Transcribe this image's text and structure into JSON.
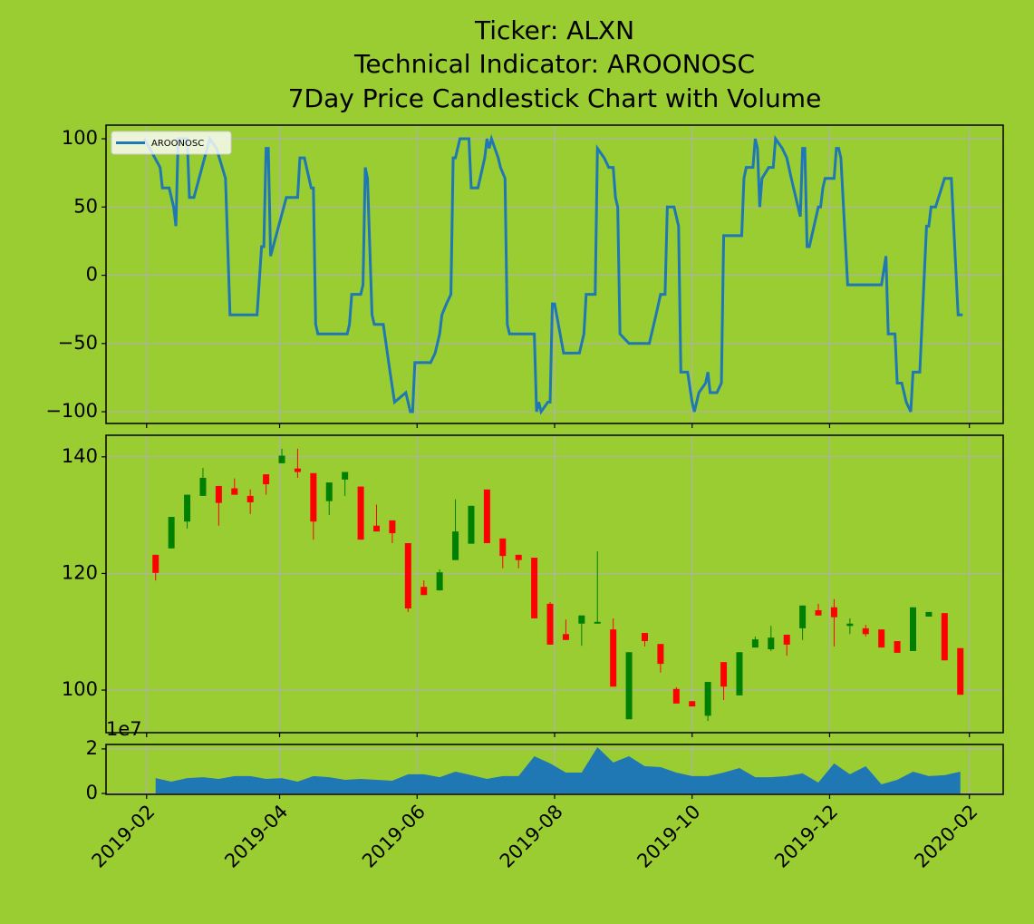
{
  "chart_data": [
    {
      "type": "line",
      "title": [
        "Ticker: ALXN",
        "Technical Indicator: AROONOSC",
        "7Day Price Candlestick Chart with Volume"
      ],
      "x": [
        "2019-01-31",
        "2019-02-07",
        "2019-02-08",
        "2019-02-11",
        "2019-02-13",
        "2019-02-14",
        "2019-02-15",
        "2019-02-19",
        "2019-02-20",
        "2019-02-22",
        "2019-03-01",
        "2019-03-04",
        "2019-03-08",
        "2019-03-10",
        "2019-03-22",
        "2019-03-24",
        "2019-03-25",
        "2019-03-26",
        "2019-03-27",
        "2019-03-28",
        "2019-04-04",
        "2019-04-09",
        "2019-04-10",
        "2019-04-12",
        "2019-04-15",
        "2019-04-16",
        "2019-04-17",
        "2019-04-18",
        "2019-05-01",
        "2019-05-02",
        "2019-05-03",
        "2019-05-07",
        "2019-05-08",
        "2019-05-09",
        "2019-05-10",
        "2019-05-12",
        "2019-05-13",
        "2019-05-17",
        "2019-05-20",
        "2019-05-22",
        "2019-05-27",
        "2019-05-29",
        "2019-05-30",
        "2019-05-31",
        "2019-06-07",
        "2019-06-09",
        "2019-06-11",
        "2019-06-12",
        "2019-06-14",
        "2019-06-16",
        "2019-06-17",
        "2019-06-18",
        "2019-06-20",
        "2019-06-24",
        "2019-06-25",
        "2019-06-28",
        "2019-07-01",
        "2019-07-02",
        "2019-07-03",
        "2019-07-04",
        "2019-07-07",
        "2019-07-08",
        "2019-07-10",
        "2019-07-11",
        "2019-07-12",
        "2019-07-23",
        "2019-07-24",
        "2019-07-25",
        "2019-07-26",
        "2019-07-29",
        "2019-07-30",
        "2019-07-31",
        "2019-08-01",
        "2019-08-05",
        "2019-08-12",
        "2019-08-14",
        "2019-08-15",
        "2019-08-19",
        "2019-08-20",
        "2019-08-23",
        "2019-08-25",
        "2019-08-27",
        "2019-08-28",
        "2019-08-29",
        "2019-08-30",
        "2019-09-03",
        "2019-09-12",
        "2019-09-15",
        "2019-09-17",
        "2019-09-19",
        "2019-09-20",
        "2019-09-23",
        "2019-09-25",
        "2019-09-26",
        "2019-09-29",
        "2019-10-01",
        "2019-10-02",
        "2019-10-04",
        "2019-10-07",
        "2019-10-08",
        "2019-10-09",
        "2019-10-12",
        "2019-10-14",
        "2019-10-15",
        "2019-10-23",
        "2019-10-24",
        "2019-10-25",
        "2019-10-28",
        "2019-10-29",
        "2019-10-30",
        "2019-10-31",
        "2019-11-01",
        "2019-11-04",
        "2019-11-06",
        "2019-11-07",
        "2019-11-10",
        "2019-11-12",
        "2019-11-14",
        "2019-11-16",
        "2019-11-18",
        "2019-11-19",
        "2019-11-20",
        "2019-11-21",
        "2019-11-22",
        "2019-11-26",
        "2019-11-27",
        "2019-11-28",
        "2019-11-29",
        "2019-12-03",
        "2019-12-04",
        "2019-12-05",
        "2019-12-06",
        "2019-12-09",
        "2019-12-24",
        "2019-12-26",
        "2019-12-27",
        "2019-12-30",
        "2019-12-31",
        "2020-01-02",
        "2020-01-04",
        "2020-01-06",
        "2020-01-07",
        "2020-01-10",
        "2020-01-13",
        "2020-01-14",
        "2020-01-15",
        "2020-01-17",
        "2020-01-21",
        "2020-01-24",
        "2020-01-27",
        "2020-01-29"
      ],
      "series": [
        {
          "name": "AROONOSC",
          "color": "#1f77b4",
          "values": [
            100,
            79,
            64,
            64,
            50,
            36,
            100,
            100,
            57,
            57,
            100,
            93,
            71,
            -29,
            -29,
            21,
            21,
            93,
            93,
            14,
            57,
            57,
            86,
            86,
            64,
            64,
            -36,
            -43,
            -43,
            -36,
            -14,
            -14,
            -7,
            79,
            71,
            -29,
            -36,
            -36,
            -71,
            -93,
            -86,
            -100,
            -100,
            -64,
            -64,
            -57,
            -43,
            -29,
            -21,
            -14,
            86,
            86,
            100,
            100,
            64,
            64,
            86,
            100,
            93,
            100,
            86,
            79,
            71,
            -36,
            -43,
            -43,
            -100,
            -93,
            -100,
            -93,
            -93,
            -21,
            -21,
            -57,
            -57,
            -43,
            -14,
            -14,
            93,
            86,
            79,
            79,
            57,
            50,
            -43,
            -50,
            -50,
            -29,
            -14,
            -14,
            50,
            50,
            36,
            -71,
            -71,
            -93,
            -100,
            -86,
            -79,
            -71,
            -86,
            -86,
            -79,
            29,
            29,
            71,
            79,
            79,
            100,
            93,
            50,
            71,
            79,
            79,
            100,
            93,
            86,
            71,
            57,
            43,
            93,
            93,
            21,
            21,
            50,
            50,
            64,
            71,
            71,
            93,
            93,
            86,
            -7,
            -7,
            14,
            -43,
            -43,
            -79,
            -79,
            -93,
            -100,
            -71,
            -71,
            36,
            36,
            50,
            50,
            71,
            71,
            -29,
            -29
          ]
        }
      ],
      "ylim": [
        -108.6,
        110.0
      ],
      "yticks": [
        100,
        50,
        0,
        {
          "value": -50,
          "label": "−50"
        },
        {
          "value": -100,
          "label": "−100"
        }
      ],
      "legend": "upper left",
      "grid": true
    },
    {
      "type": "candlestick",
      "x": [
        "2019-02-05",
        "2019-02-12",
        "2019-02-19",
        "2019-02-26",
        "2019-03-05",
        "2019-03-12",
        "2019-03-19",
        "2019-03-26",
        "2019-04-02",
        "2019-04-09",
        "2019-04-16",
        "2019-04-23",
        "2019-04-30",
        "2019-05-07",
        "2019-05-14",
        "2019-05-21",
        "2019-05-28",
        "2019-06-04",
        "2019-06-11",
        "2019-06-18",
        "2019-06-25",
        "2019-07-02",
        "2019-07-09",
        "2019-07-16",
        "2019-07-23",
        "2019-07-30",
        "2019-08-06",
        "2019-08-13",
        "2019-08-20",
        "2019-08-27",
        "2019-09-03",
        "2019-09-10",
        "2019-09-17",
        "2019-09-24",
        "2019-10-01",
        "2019-10-08",
        "2019-10-15",
        "2019-10-22",
        "2019-10-29",
        "2019-11-05",
        "2019-11-12",
        "2019-11-19",
        "2019-11-26",
        "2019-12-03",
        "2019-12-10",
        "2019-12-17",
        "2019-12-24",
        "2019-12-31",
        "2020-01-07",
        "2020-01-14",
        "2020-01-21",
        "2020-01-28"
      ],
      "open": [
        123.2,
        124.3,
        128.9,
        133.3,
        135.0,
        134.6,
        133.3,
        137.0,
        138.9,
        138.0,
        137.2,
        132.4,
        136.1,
        134.9,
        128.2,
        129.1,
        125.2,
        117.7,
        117.1,
        122.3,
        125.1,
        134.4,
        126.0,
        123.2,
        122.7,
        114.8,
        109.6,
        111.4,
        111.4,
        110.4,
        95.0,
        109.8,
        107.9,
        100.2,
        98.1,
        95.6,
        104.8,
        99.1,
        107.3,
        107.0,
        109.5,
        110.6,
        113.7,
        114.2,
        111.0,
        110.6,
        110.4,
        108.4,
        106.7,
        112.6,
        113.2,
        107.2
      ],
      "high": [
        123.2,
        129.7,
        133.5,
        138.1,
        135.0,
        136.3,
        134.4,
        137.0,
        141.4,
        141.4,
        137.2,
        135.6,
        137.4,
        134.9,
        131.8,
        129.1,
        125.2,
        118.8,
        120.7,
        132.7,
        131.6,
        134.4,
        126.0,
        123.2,
        122.7,
        115.1,
        112.1,
        112.8,
        123.8,
        112.3,
        106.5,
        109.8,
        107.9,
        100.5,
        98.1,
        101.4,
        104.8,
        106.5,
        109.2,
        111.0,
        109.5,
        114.5,
        114.8,
        115.6,
        112.3,
        111.2,
        110.4,
        108.4,
        114.2,
        113.4,
        113.2,
        107.2
      ],
      "low": [
        118.8,
        124.3,
        127.7,
        133.3,
        128.2,
        133.5,
        130.2,
        133.5,
        138.9,
        136.4,
        125.8,
        130.0,
        133.3,
        125.8,
        127.2,
        125.2,
        113.4,
        116.3,
        117.1,
        122.3,
        125.1,
        125.2,
        120.9,
        120.9,
        112.3,
        107.8,
        108.6,
        107.6,
        111.4,
        100.6,
        95.0,
        107.5,
        103.0,
        97.7,
        97.2,
        94.7,
        98.3,
        99.1,
        107.3,
        106.7,
        105.9,
        108.6,
        112.8,
        107.5,
        109.6,
        109.2,
        107.3,
        106.4,
        106.7,
        112.6,
        105.1,
        99.2
      ],
      "close": [
        120.1,
        129.7,
        133.5,
        136.4,
        132.1,
        133.5,
        132.2,
        135.3,
        140.2,
        137.4,
        128.9,
        135.6,
        137.4,
        125.8,
        127.2,
        126.9,
        114.0,
        116.3,
        120.2,
        127.2,
        131.6,
        125.2,
        123.0,
        122.3,
        112.3,
        107.8,
        108.6,
        112.8,
        111.7,
        100.6,
        106.5,
        108.4,
        104.5,
        97.7,
        97.2,
        101.4,
        100.6,
        106.5,
        108.7,
        109.0,
        107.8,
        114.5,
        112.8,
        112.5,
        111.4,
        109.6,
        107.3,
        106.4,
        114.2,
        113.4,
        105.1,
        99.2
      ],
      "up_color": "green",
      "down_color": "red",
      "ylim": [
        92.7,
        143.7
      ],
      "yticks": [
        100,
        120,
        140
      ],
      "grid": true
    },
    {
      "type": "area",
      "x": [
        "2019-02-05",
        "2019-02-12",
        "2019-02-19",
        "2019-02-26",
        "2019-03-05",
        "2019-03-12",
        "2019-03-19",
        "2019-03-26",
        "2019-04-02",
        "2019-04-09",
        "2019-04-16",
        "2019-04-23",
        "2019-04-30",
        "2019-05-07",
        "2019-05-14",
        "2019-05-21",
        "2019-05-28",
        "2019-06-04",
        "2019-06-11",
        "2019-06-18",
        "2019-06-25",
        "2019-07-02",
        "2019-07-09",
        "2019-07-16",
        "2019-07-23",
        "2019-07-30",
        "2019-08-06",
        "2019-08-13",
        "2019-08-20",
        "2019-08-27",
        "2019-09-03",
        "2019-09-10",
        "2019-09-17",
        "2019-09-24",
        "2019-10-01",
        "2019-10-08",
        "2019-10-15",
        "2019-10-22",
        "2019-10-29",
        "2019-11-05",
        "2019-11-12",
        "2019-11-19",
        "2019-11-26",
        "2019-12-03",
        "2019-12-10",
        "2019-12-17",
        "2019-12-24",
        "2019-12-31",
        "2020-01-07",
        "2020-01-14",
        "2020-01-21",
        "2020-01-28"
      ],
      "values": [
        0.69,
        0.53,
        0.69,
        0.73,
        0.65,
        0.78,
        0.78,
        0.65,
        0.69,
        0.53,
        0.78,
        0.73,
        0.61,
        0.65,
        0.61,
        0.57,
        0.86,
        0.86,
        0.73,
        0.98,
        0.82,
        0.65,
        0.78,
        0.78,
        1.67,
        1.35,
        0.94,
        0.94,
        2.08,
        1.39,
        1.67,
        1.22,
        1.18,
        0.94,
        0.78,
        0.78,
        0.94,
        1.14,
        0.73,
        0.73,
        0.78,
        0.9,
        0.49,
        1.35,
        0.86,
        1.22,
        0.41,
        0.61,
        0.98,
        0.78,
        0.82,
        0.98
      ],
      "color": "#1f77b4",
      "offset_label": "1e7",
      "ylim": [
        -0.04,
        2.2
      ],
      "yticks": [
        0,
        2
      ],
      "grid": true,
      "xlim": [
        "2019-01-14",
        "2020-02-16"
      ],
      "xticks": [
        {
          "value": "2019-02-01",
          "label": "2019-02"
        },
        {
          "value": "2019-04-01",
          "label": "2019-04"
        },
        {
          "value": "2019-06-01",
          "label": "2019-06"
        },
        {
          "value": "2019-08-01",
          "label": "2019-08"
        },
        {
          "value": "2019-10-01",
          "label": "2019-10"
        },
        {
          "value": "2019-12-01",
          "label": "2019-12"
        },
        {
          "value": "2020-02-01",
          "label": "2020-02"
        }
      ]
    }
  ]
}
